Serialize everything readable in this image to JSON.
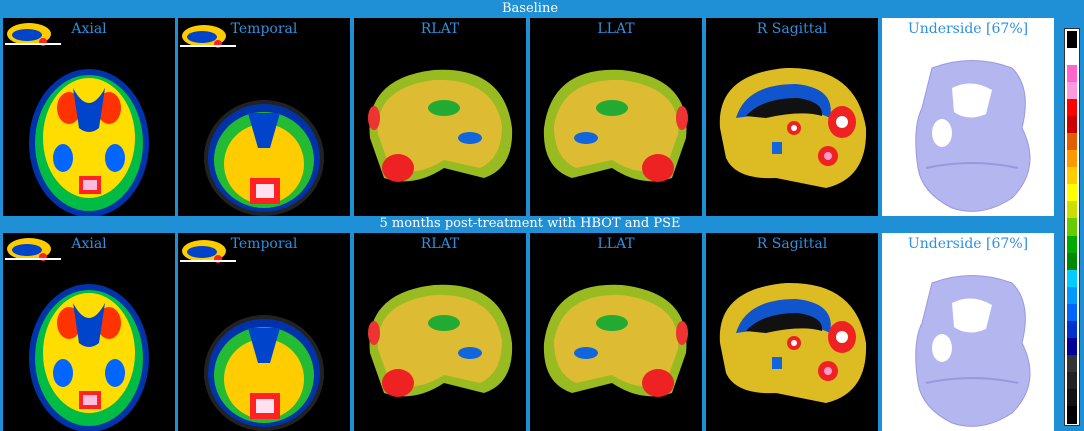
{
  "rows": [
    {
      "banner": "Baseline",
      "panels": [
        "Axial",
        "Temporal",
        "RLAT",
        "LLAT",
        "R Sagittal",
        "Underside [67%]"
      ]
    },
    {
      "banner": "5 months post-treatment with HBOT and PSE",
      "panels": [
        "Axial",
        "Temporal",
        "RLAT",
        "LLAT",
        "R Sagittal",
        "Underside [67%]"
      ]
    }
  ],
  "icons": [
    "brain-thumbnail-icon",
    "brain-scan-image",
    "brain-3d-surface-image"
  ],
  "colorbar": [
    "#000000",
    "#ffffff",
    "#ff66cc",
    "#ff99dd",
    "#ff0000",
    "#cc0000",
    "#e06000",
    "#ff9900",
    "#ffcc00",
    "#ffff00",
    "#ccdd00",
    "#66cc00",
    "#00aa00",
    "#008800",
    "#00ccff",
    "#0099ff",
    "#0066ff",
    "#0033cc",
    "#000099",
    "#333333",
    "#222222",
    "#111111",
    "#000000"
  ]
}
